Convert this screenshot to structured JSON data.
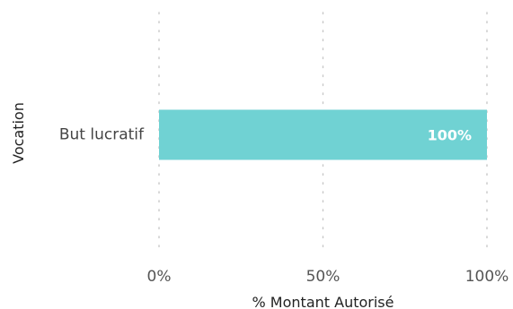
{
  "chart_data": {
    "type": "bar",
    "orientation": "horizontal",
    "categories": [
      "But lucratif"
    ],
    "values": [
      100
    ],
    "data_labels": [
      "100%"
    ],
    "xlabel": "% Montant Autorisé",
    "ylabel": "Vocation",
    "xlim": [
      0,
      100
    ],
    "xticks": [
      0,
      50,
      100
    ],
    "xtick_labels": [
      "0%",
      "50%",
      "100%"
    ],
    "grid": "vertical-dotted",
    "bar_color": "#70D2D3",
    "grid_color": "#C8C8C8"
  }
}
